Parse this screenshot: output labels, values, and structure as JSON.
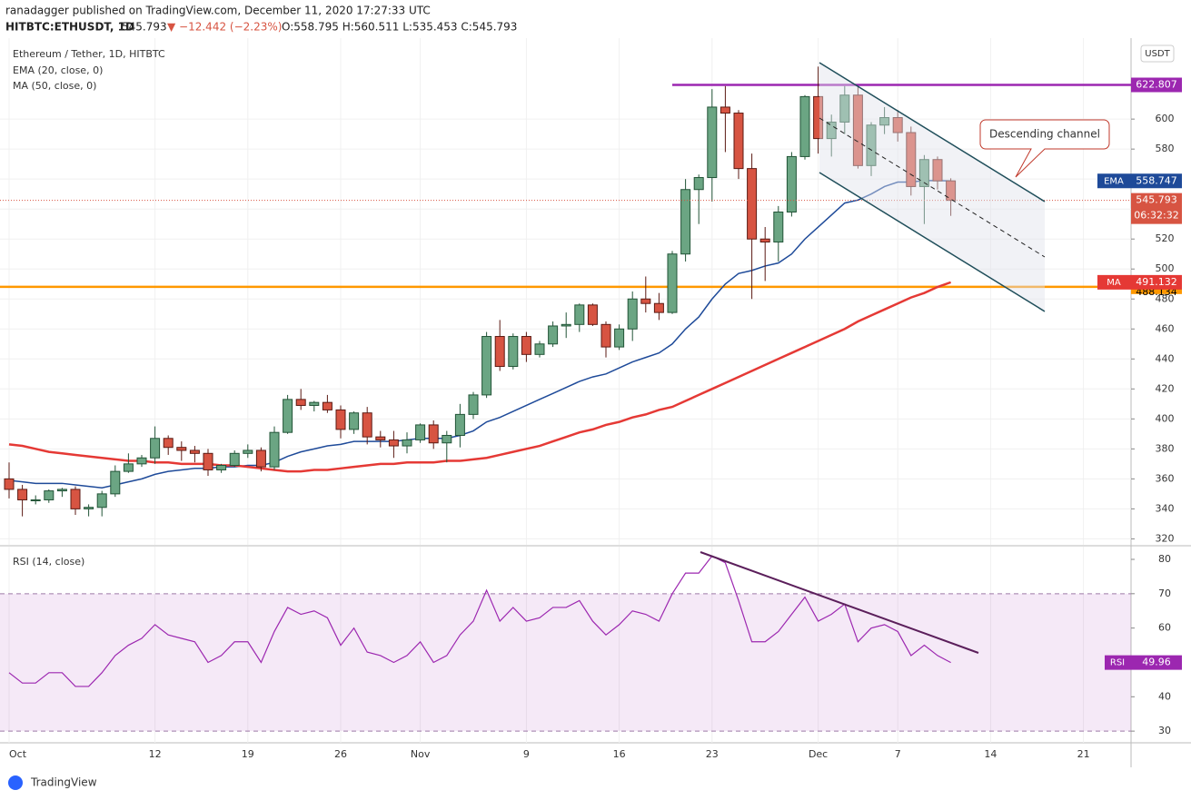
{
  "header": {
    "published": "ranadagger published on TradingView.com, December 11, 2020 17:27:33 UTC",
    "symbol": "HITBTC:ETHUSDT, 1D",
    "last": "545.793",
    "change": "▼ −12.442 (−2.23%)",
    "ohlc": "O:558.795 H:560.511 L:535.453 C:545.793"
  },
  "footer": {
    "brand": "TradingView"
  },
  "chart_data": [
    {
      "type": "candlestick",
      "title": "Ethereum / Tether, 1D, HITBTC",
      "currency": "USDT",
      "countdown": "06:32:32",
      "annotation": "Descending channel",
      "up_color": "#6ba583",
      "down_color": "#d75442",
      "open": [
        360,
        353,
        346,
        346,
        352,
        353,
        340,
        341,
        350,
        365,
        370,
        374,
        387,
        381,
        379,
        377,
        366,
        369,
        377,
        379,
        368,
        391,
        413,
        409,
        411,
        406,
        393,
        404,
        388,
        386,
        382,
        386,
        396,
        384,
        389,
        403,
        416,
        455,
        435,
        455,
        443,
        450,
        462,
        463,
        476,
        463,
        448,
        460,
        480,
        477,
        471,
        510,
        553,
        561,
        608,
        604,
        567,
        520,
        518,
        538,
        575,
        615,
        587,
        598,
        616,
        569,
        596,
        601,
        591,
        555,
        573,
        558.795
      ],
      "high": [
        371,
        356,
        349,
        353,
        354,
        355,
        343,
        352,
        369,
        377,
        376,
        395,
        389,
        385,
        382,
        380,
        370,
        379,
        383,
        381,
        395,
        416,
        420,
        412,
        416,
        409,
        405,
        408,
        392,
        392,
        391,
        397,
        399,
        392,
        410,
        418,
        458,
        466,
        457,
        458,
        452,
        465,
        471,
        477,
        477,
        465,
        463,
        485,
        495,
        484,
        512,
        560,
        563,
        620,
        622,
        606,
        577,
        528,
        542,
        578,
        616,
        635,
        603,
        622,
        622,
        598,
        608,
        606,
        595,
        576,
        575,
        560.511
      ],
      "low": [
        347,
        335,
        343,
        344,
        348,
        336,
        335,
        335,
        348,
        364,
        368,
        370,
        376,
        372,
        371,
        362,
        364,
        368,
        374,
        365,
        366,
        390,
        406,
        405,
        404,
        387,
        390,
        383,
        381,
        374,
        377,
        384,
        380,
        371,
        381,
        400,
        414,
        432,
        433,
        438,
        441,
        448,
        454,
        458,
        462,
        441,
        446,
        452,
        471,
        466,
        470,
        505,
        530,
        545,
        578,
        560,
        480,
        492,
        505,
        535,
        573,
        577,
        575,
        590,
        567,
        562,
        590,
        585,
        549,
        530,
        553,
        535.453
      ],
      "close": [
        353,
        346,
        346,
        352,
        353,
        340,
        341,
        350,
        365,
        370,
        374,
        387,
        381,
        379,
        377,
        366,
        369,
        377,
        379,
        368,
        391,
        413,
        409,
        411,
        406,
        393,
        404,
        388,
        386,
        382,
        386,
        396,
        384,
        389,
        403,
        416,
        455,
        435,
        455,
        443,
        450,
        462,
        463,
        476,
        463,
        448,
        460,
        480,
        477,
        471,
        510,
        553,
        561,
        608,
        604,
        567,
        520,
        518,
        538,
        575,
        615,
        587,
        598,
        616,
        569,
        596,
        601,
        591,
        555,
        573,
        558.795,
        545.793
      ],
      "series": [
        {
          "name": "EMA (20, close, 0)",
          "short": "EMA",
          "color": "#1e4a99",
          "values": [
            359,
            358,
            357,
            357,
            357,
            356,
            355,
            354,
            356,
            358,
            360,
            363,
            365,
            366,
            367,
            367,
            368,
            368,
            369,
            369,
            371,
            375,
            378,
            380,
            382,
            383,
            385,
            385,
            385,
            385,
            386,
            387,
            387,
            387,
            389,
            392,
            398,
            401,
            405,
            409,
            413,
            417,
            421,
            425,
            428,
            430,
            434,
            438,
            441,
            444,
            450,
            460,
            468,
            480,
            490,
            497,
            499,
            502,
            504,
            510,
            520,
            528,
            536,
            544,
            546,
            550,
            555,
            558,
            558,
            559,
            559,
            558.747
          ]
        },
        {
          "name": "MA (50, close, 0)",
          "short": "MA",
          "color": "#e53935",
          "values": [
            383,
            382,
            380,
            378,
            377,
            376,
            375,
            374,
            373,
            372,
            372,
            371,
            371,
            370,
            370,
            370,
            369,
            369,
            368,
            367,
            366,
            365,
            365,
            366,
            366,
            367,
            368,
            369,
            370,
            370,
            371,
            371,
            371,
            372,
            372,
            373,
            374,
            376,
            378,
            380,
            382,
            385,
            388,
            391,
            393,
            396,
            398,
            401,
            403,
            406,
            408,
            412,
            416,
            420,
            424,
            428,
            432,
            436,
            440,
            444,
            448,
            452,
            456,
            460,
            465,
            469,
            473,
            477,
            481,
            484,
            488,
            491.132
          ]
        }
      ],
      "levels": [
        {
          "value": 622.807,
          "color": "#9c27b0"
        },
        {
          "value": 488.134,
          "color": "#ff9800"
        }
      ],
      "ylim": [
        316,
        654
      ],
      "yticks": [
        320,
        340,
        360,
        380,
        400,
        420,
        440,
        460,
        480,
        500,
        520,
        540,
        560,
        580,
        600
      ],
      "xticks": [
        {
          "value": 0,
          "label": "Oct"
        },
        {
          "value": 11,
          "label": "12"
        },
        {
          "value": 18,
          "label": "19"
        },
        {
          "value": 25,
          "label": "26"
        },
        {
          "value": 31,
          "label": "Nov"
        },
        {
          "value": 39,
          "label": "9"
        },
        {
          "value": 46,
          "label": "16"
        },
        {
          "value": 53,
          "label": "23"
        },
        {
          "value": 61,
          "label": "Dec"
        },
        {
          "value": 67,
          "label": "7"
        },
        {
          "value": 74,
          "label": "14"
        },
        {
          "value": 81,
          "label": "21"
        }
      ]
    },
    {
      "type": "line",
      "title": "RSI (14, close)",
      "short": "RSI",
      "color": "#9c27b0",
      "values": [
        47,
        44,
        44,
        47,
        47,
        43,
        43,
        47,
        52,
        55,
        57,
        61,
        58,
        57,
        56,
        50,
        52,
        56,
        56,
        50,
        59,
        66,
        64,
        65,
        63,
        55,
        60,
        53,
        52,
        50,
        52,
        56,
        50,
        52,
        58,
        62,
        71,
        62,
        66,
        62,
        63,
        66,
        66,
        68,
        62,
        58,
        61,
        65,
        64,
        62,
        70,
        76,
        76,
        81,
        79,
        68,
        56,
        56,
        59,
        64,
        69,
        62,
        64,
        67,
        56,
        60,
        61,
        59,
        52,
        55,
        52,
        49.96
      ],
      "band": [
        30,
        70
      ],
      "ylim": [
        26.6,
        83.7
      ],
      "yticks": [
        30,
        40,
        50,
        60,
        70,
        80
      ]
    }
  ]
}
